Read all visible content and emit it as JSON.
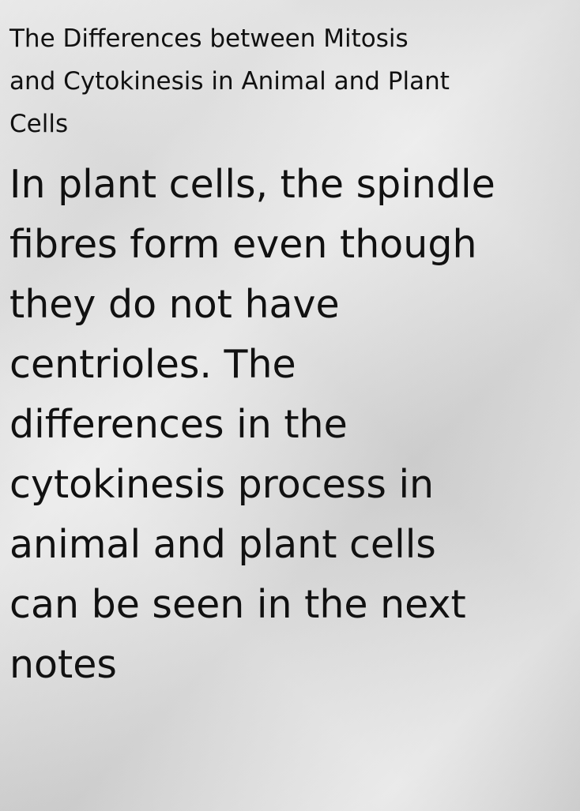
{
  "title_lines": [
    "The Differences between Mitosis",
    "and Cytokinesis in Animal and Plant",
    "Cells"
  ],
  "body_lines": [
    "In plant cells, the spindle",
    "fibres form even though",
    "they do not have",
    "centrioles. The",
    "differences in the",
    "cytokinesis process in",
    "animal and plant cells",
    "can be seen in the next",
    "notes"
  ]
}
